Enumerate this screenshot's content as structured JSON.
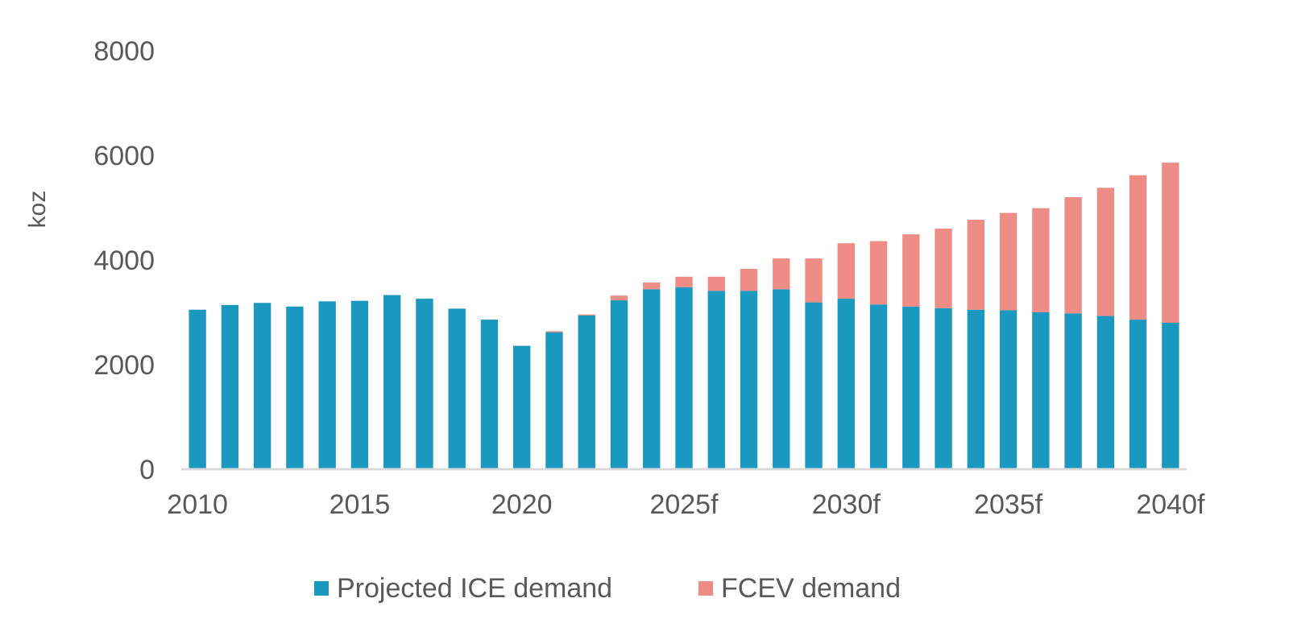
{
  "chart_data": {
    "type": "bar",
    "stacked": true,
    "title": "",
    "xlabel": "",
    "ylabel": "koz",
    "ylim": [
      0,
      8000
    ],
    "y_ticks": [
      0,
      2000,
      4000,
      6000,
      8000
    ],
    "grid": false,
    "legend_position": "bottom",
    "categories": [
      "2010",
      "2011",
      "2012",
      "2013",
      "2014",
      "2015",
      "2016",
      "2017",
      "2018",
      "2019",
      "2020",
      "2021",
      "2022",
      "2023",
      "2024",
      "2025f",
      "2026",
      "2027",
      "2028",
      "2029",
      "2030f",
      "2031",
      "2032",
      "2033",
      "2034",
      "2035f",
      "2036",
      "2037",
      "2038",
      "2039",
      "2040f"
    ],
    "x_tick_labels": [
      "2010",
      "2015",
      "2020",
      "2025f",
      "2030f",
      "2035f",
      "2040f"
    ],
    "series": [
      {
        "name": "Projected ICE demand",
        "color": "#1B98BF",
        "values": [
          3050,
          3140,
          3180,
          3110,
          3210,
          3220,
          3330,
          3260,
          3070,
          2860,
          2360,
          2620,
          2940,
          3230,
          3440,
          3480,
          3410,
          3410,
          3440,
          3190,
          3260,
          3150,
          3110,
          3080,
          3050,
          3040,
          3000,
          2980,
          2930,
          2860,
          2800
        ]
      },
      {
        "name": "FCEV demand",
        "color": "#EE8C86",
        "values": [
          0,
          0,
          0,
          0,
          0,
          0,
          0,
          0,
          0,
          0,
          0,
          20,
          20,
          90,
          130,
          200,
          270,
          420,
          590,
          840,
          1060,
          1210,
          1380,
          1520,
          1720,
          1860,
          1990,
          2220,
          2450,
          2760,
          3060
        ]
      }
    ]
  }
}
